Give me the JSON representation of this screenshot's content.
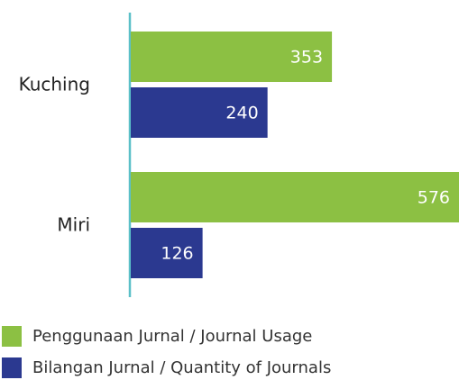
{
  "chart_data": {
    "type": "bar",
    "orientation": "horizontal",
    "categories": [
      "Kuching",
      "Miri"
    ],
    "series": [
      {
        "name": "Penggunaan Jurnal / Journal Usage",
        "color": "#8cc043",
        "values": [
          353,
          576
        ]
      },
      {
        "name": "Bilangan Jurnal / Quantity of Journals",
        "color": "#2b3990",
        "values": [
          240,
          126
        ]
      }
    ]
  }
}
